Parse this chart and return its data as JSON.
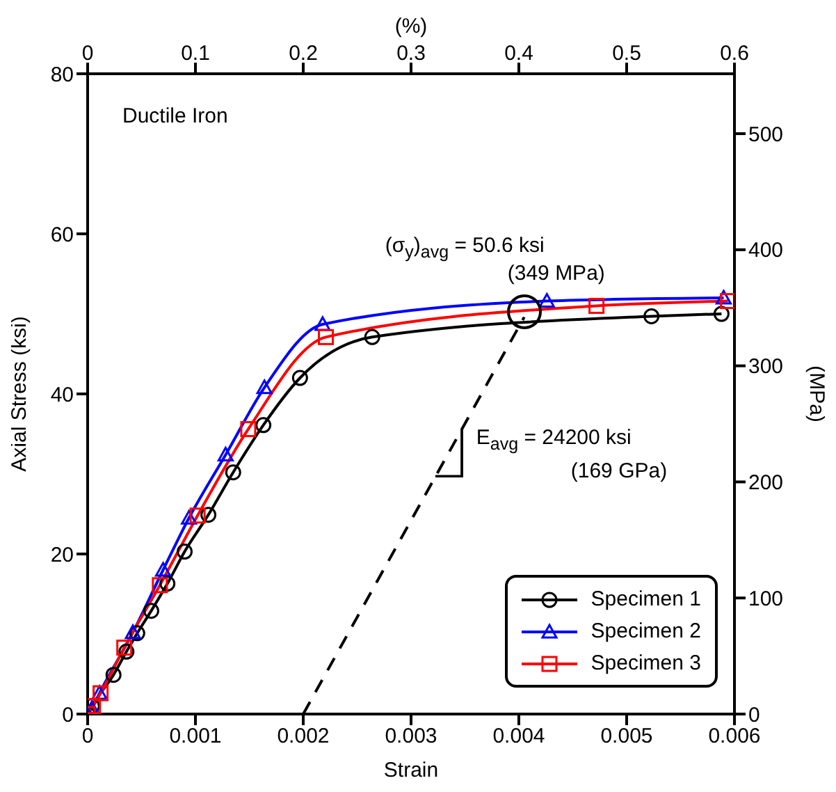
{
  "chart_data": {
    "type": "line",
    "xlabel": "Strain",
    "ylabel": "Axial Stress (ksi)",
    "y2label": "(MPa)",
    "x2label": "(%)",
    "xlim": [
      0,
      0.006
    ],
    "xticks": [
      0,
      0.001,
      0.002,
      0.003,
      0.004,
      0.005,
      0.006
    ],
    "ylim": [
      0,
      80
    ],
    "yticks": [
      0,
      20,
      40,
      60,
      80
    ],
    "y2lim": [
      0,
      551.6
    ],
    "y2ticks": [
      0,
      100,
      200,
      300,
      400,
      500
    ],
    "x2lim": [
      0,
      0.6
    ],
    "x2ticks": [
      0,
      0.1,
      0.2,
      0.3,
      0.4,
      0.5,
      0.6
    ],
    "grid": false,
    "legend": "bottom right",
    "series": [
      {
        "name": "Specimen 1",
        "color": "#000000",
        "marker": "circle",
        "x": [
          0,
          4e-05,
          0.00024,
          0.00036,
          0.00046,
          0.00059,
          0.00074,
          0.0009,
          0.00112,
          0.00135,
          0.00163,
          0.00197,
          0.00264,
          0.00523,
          0.00588
        ],
        "values": [
          0,
          1.0,
          4.9,
          7.8,
          10.1,
          12.9,
          16.3,
          20.3,
          24.9,
          30.2,
          36.1,
          42.0,
          47.1,
          49.7,
          50.0
        ]
      },
      {
        "name": "Specimen 2",
        "color": "#0000ff",
        "marker": "triangle",
        "x": [
          0,
          4e-05,
          0.00011,
          0.00042,
          0.0007,
          0.00094,
          0.00128,
          0.00164,
          0.00218,
          0.00426,
          0.0059
        ],
        "values": [
          0,
          0.7,
          2.6,
          10.2,
          18.0,
          24.5,
          32.4,
          40.8,
          48.7,
          51.6,
          52.0
        ]
      },
      {
        "name": "Specimen 3",
        "color": "#ff0000",
        "marker": "square",
        "x": [
          0,
          5e-05,
          0.00012,
          0.00034,
          0.00067,
          0.00102,
          0.00149,
          0.00221,
          0.00472,
          0.00594
        ],
        "values": [
          0,
          1.0,
          2.6,
          8.3,
          16.1,
          24.8,
          35.6,
          47.1,
          51.0,
          51.6
        ]
      },
      {
        "type": "line",
        "color": "#000000",
        "line_style": "dashed",
        "marker": "none",
        "x": [
          0.002,
          0.00405
        ],
        "values": [
          0,
          49.6
        ]
      }
    ],
    "annotations": [
      "Ductile Iron",
      {
        "text": "(σ$_{y}$)$_{avg}$ = 50.6 ksi",
        "x": 0.00405,
        "y": 50.2
      },
      "(349 MPa)",
      "E$_{avg}$ = 24200 ksi",
      "(169 GPa)"
    ]
  }
}
